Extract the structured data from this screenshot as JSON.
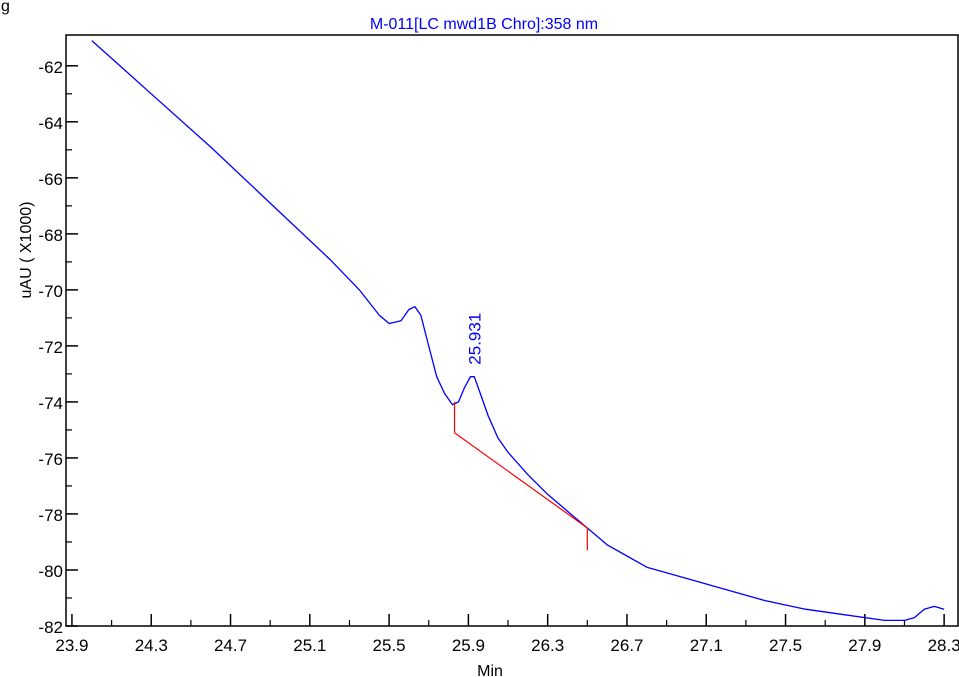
{
  "header": {
    "cropped_text": "g"
  },
  "chart_data": {
    "type": "line",
    "title": "M-011[LC mwd1B Chro]:358 nm",
    "xlabel": "Min",
    "ylabel": "uAU ( X1000)",
    "xlim": [
      23.87,
      28.37
    ],
    "ylim": [
      -82.0,
      -60.9
    ],
    "xticks": [
      "23.9",
      "24.3",
      "24.7",
      "25.1",
      "25.5",
      "25.9",
      "26.3",
      "26.7",
      "27.1",
      "27.5",
      "27.9",
      "28.3"
    ],
    "xtick_values": [
      23.9,
      24.3,
      24.7,
      25.1,
      25.5,
      25.9,
      26.3,
      26.7,
      27.1,
      27.5,
      27.9,
      28.3
    ],
    "yticks": [
      "-62",
      "-64",
      "-66",
      "-68",
      "-70",
      "-72",
      "-74",
      "-76",
      "-78",
      "-80",
      "-82"
    ],
    "ytick_values": [
      -62,
      -64,
      -66,
      -68,
      -70,
      -72,
      -74,
      -76,
      -77.999,
      -80,
      -82
    ],
    "grid": false,
    "colors": {
      "trace": "#0000ff",
      "baseline": "#ff0000",
      "axis": "#000000",
      "title": "#0000ff",
      "peak_label": "#0000ff"
    },
    "series": [
      {
        "x": [
          24.0,
          24.3,
          24.6,
          24.9,
          25.2,
          25.35,
          25.45,
          25.5,
          25.56,
          25.6,
          25.63,
          25.66,
          25.7,
          25.74,
          25.78,
          25.82,
          25.85,
          25.88,
          25.91,
          25.93,
          25.96,
          26.0,
          26.05,
          26.1,
          26.2,
          26.3,
          26.4,
          26.5,
          26.6,
          26.7,
          26.8,
          27.0,
          27.2,
          27.4,
          27.6,
          27.8,
          28.0,
          28.1,
          28.15,
          28.2,
          28.25,
          28.3
        ],
        "y": [
          -61.1,
          -63.0,
          -64.9,
          -66.9,
          -68.9,
          -70.0,
          -70.9,
          -71.2,
          -71.1,
          -70.7,
          -70.6,
          -70.9,
          -72.0,
          -73.1,
          -73.7,
          -74.1,
          -74.0,
          -73.5,
          -73.1,
          -73.1,
          -73.7,
          -74.5,
          -75.3,
          -75.8,
          -76.6,
          -77.3,
          -77.9,
          -78.5,
          -79.1,
          -79.5,
          -79.9,
          -80.3,
          -80.7,
          -81.1,
          -81.4,
          -81.6,
          -81.8,
          -81.8,
          -81.7,
          -81.4,
          -81.3,
          -81.4
        ]
      }
    ],
    "peaks": [
      {
        "label": "25.931",
        "x": 25.931,
        "y": -73.1,
        "baseline_start": {
          "x": 25.83,
          "y": -75.1
        },
        "baseline_end": {
          "x": 26.5,
          "y": -78.5
        },
        "start_marker_top_y": -74.0,
        "end_marker_bottom_y": -79.3
      }
    ]
  }
}
